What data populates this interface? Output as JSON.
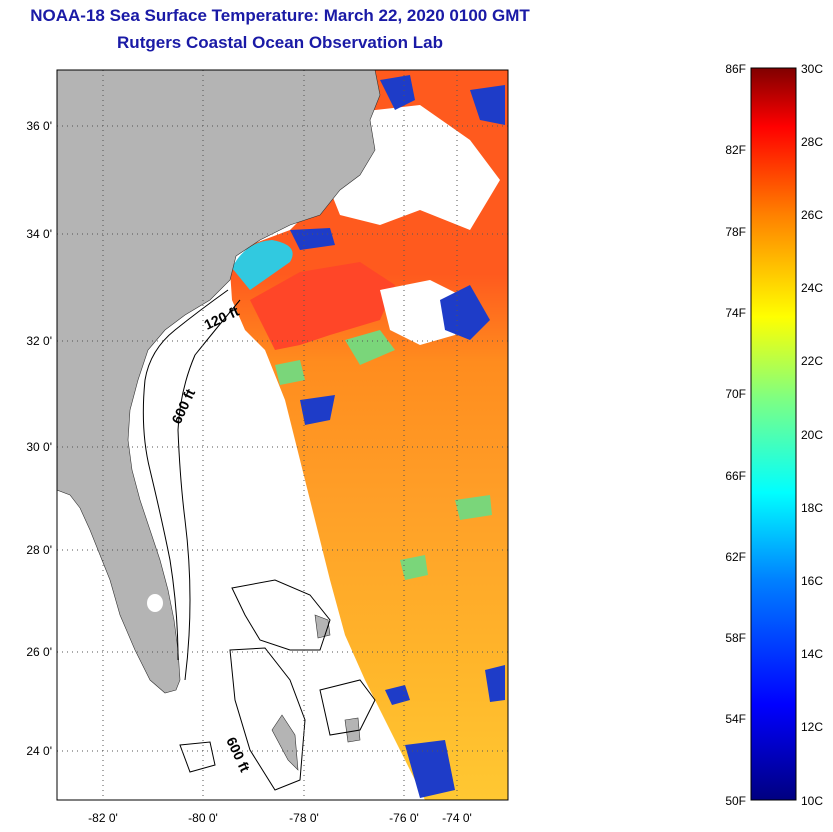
{
  "header": {
    "title": "NOAA-18 Sea Surface Temperature:  March 22, 2020 0100 GMT",
    "subtitle": "Rutgers Coastal Ocean Observation Lab"
  },
  "map": {
    "lat_labels": [
      "36 0'",
      "34 0'",
      "32 0'",
      "30 0'",
      "28 0'",
      "26 0'",
      "24 0'"
    ],
    "lon_labels": [
      "-82 0'",
      "-80 0'",
      "-78 0'",
      "-76 0'",
      "-74 0'"
    ],
    "isobaths": [
      "120 ft",
      "600 ft",
      "600 ft"
    ],
    "colors": {
      "land": "#b4b4b4",
      "cloud": "#ffffff",
      "grid": "#555555"
    }
  },
  "colorbar": {
    "f_labels": [
      "86F",
      "82F",
      "78F",
      "74F",
      "70F",
      "66F",
      "62F",
      "58F",
      "54F",
      "50F"
    ],
    "c_labels": [
      "30C",
      "28C",
      "26C",
      "24C",
      "22C",
      "20C",
      "18C",
      "16C",
      "14C",
      "12C",
      "10C"
    ],
    "colors": [
      "#000080",
      "#0000ff",
      "#0080ff",
      "#00ffff",
      "#80ff80",
      "#ffff00",
      "#ff8000",
      "#ff0000",
      "#800000"
    ]
  }
}
